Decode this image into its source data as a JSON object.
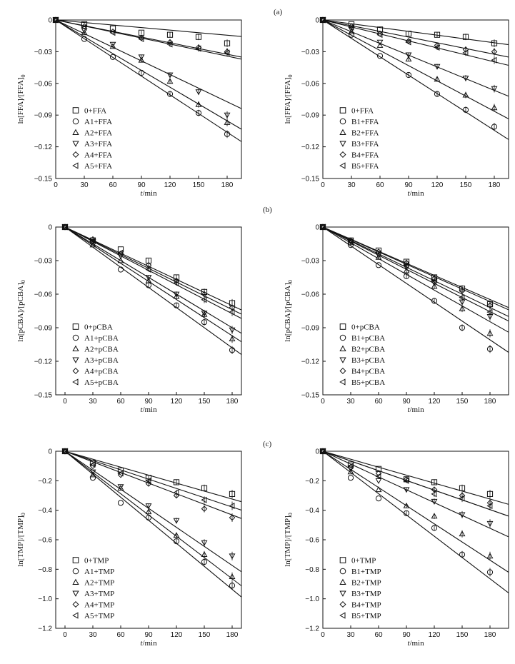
{
  "figure": {
    "panel_labels": [
      "(a)",
      "(b)",
      "(c)"
    ]
  },
  "colors": {
    "ink": "#111111",
    "background": "#ffffff"
  },
  "chart_data": [
    {
      "id": "a-left",
      "type": "scatter",
      "ylabel": "ln[FFA]/[FFA]0",
      "xlabel": "t/min",
      "xlim": [
        0,
        195
      ],
      "ylim": [
        -0.15,
        0
      ],
      "xticks": [
        0,
        30,
        60,
        90,
        120,
        150,
        180
      ],
      "xtick_labels": [
        "0",
        "30",
        "60",
        "90",
        "120",
        "150",
        "180"
      ],
      "yticks": [
        0,
        -0.03,
        -0.06,
        -0.09,
        -0.12,
        -0.15
      ],
      "ytick_labels": [
        "0",
        "−0.03",
        "−0.06",
        "−0.09",
        "−0.12",
        "−0.15"
      ],
      "series": [
        {
          "name": "0+FFA",
          "marker": "square",
          "x": [
            0,
            30,
            60,
            90,
            120,
            150,
            180
          ],
          "y": [
            0,
            -0.004,
            -0.008,
            -0.012,
            -0.014,
            -0.016,
            -0.022
          ],
          "fit_slope": -8e-05
        },
        {
          "name": "A1+FFA",
          "marker": "circle",
          "x": [
            0,
            30,
            60,
            90,
            120,
            150,
            180
          ],
          "y": [
            0,
            -0.018,
            -0.035,
            -0.05,
            -0.07,
            -0.088,
            -0.108
          ],
          "fit_slope": -0.00059
        },
        {
          "name": "A2+FFA",
          "marker": "triangle-up",
          "x": [
            0,
            30,
            60,
            90,
            120,
            150,
            180
          ],
          "y": [
            0,
            -0.012,
            -0.025,
            -0.038,
            -0.058,
            -0.08,
            -0.097
          ],
          "fit_slope": -0.00053
        },
        {
          "name": "A3+FFA",
          "marker": "triangle-down",
          "x": [
            0,
            30,
            60,
            90,
            120,
            150,
            180
          ],
          "y": [
            0,
            -0.01,
            -0.023,
            -0.035,
            -0.052,
            -0.068,
            -0.09
          ],
          "fit_slope": -0.00043
        },
        {
          "name": "A4+FFA",
          "marker": "diamond",
          "x": [
            0,
            30,
            60,
            90,
            120,
            150,
            180
          ],
          "y": [
            0,
            -0.006,
            -0.011,
            -0.017,
            -0.021,
            -0.026,
            -0.03
          ],
          "fit_slope": -0.00018
        },
        {
          "name": "A5+FFA",
          "marker": "triangle-left",
          "x": [
            0,
            30,
            60,
            90,
            120,
            150,
            180
          ],
          "y": [
            0,
            -0.007,
            -0.012,
            -0.018,
            -0.023,
            -0.027,
            -0.031
          ],
          "fit_slope": -0.00019
        }
      ]
    },
    {
      "id": "a-right",
      "type": "scatter",
      "ylabel": "ln[FFA]/[FFA]0",
      "xlabel": "t/min",
      "xlim": [
        0,
        195
      ],
      "ylim": [
        -0.15,
        0
      ],
      "xticks": [
        0,
        30,
        60,
        90,
        120,
        150,
        180
      ],
      "xtick_labels": [
        "0",
        "30",
        "60",
        "90",
        "120",
        "150",
        "180"
      ],
      "yticks": [
        0,
        -0.03,
        -0.06,
        -0.09,
        -0.12,
        -0.15
      ],
      "ytick_labels": [
        "0",
        "−0.03",
        "−0.06",
        "−0.09",
        "−0.12",
        "−0.15"
      ],
      "series": [
        {
          "name": "0+FFA",
          "marker": "square",
          "x": [
            0,
            30,
            60,
            90,
            120,
            150,
            180
          ],
          "y": [
            0,
            -0.004,
            -0.009,
            -0.013,
            -0.014,
            -0.016,
            -0.022
          ],
          "fit_slope": -0.00012
        },
        {
          "name": "B1+FFA",
          "marker": "circle",
          "x": [
            0,
            30,
            60,
            90,
            120,
            150,
            180
          ],
          "y": [
            0,
            -0.014,
            -0.034,
            -0.052,
            -0.07,
            -0.085,
            -0.101
          ],
          "fit_slope": -0.00058
        },
        {
          "name": "B2+FFA",
          "marker": "triangle-up",
          "x": [
            0,
            30,
            60,
            90,
            120,
            150,
            180
          ],
          "y": [
            0,
            -0.011,
            -0.024,
            -0.037,
            -0.056,
            -0.071,
            -0.083
          ],
          "fit_slope": -0.00048
        },
        {
          "name": "B3+FFA",
          "marker": "triangle-down",
          "x": [
            0,
            30,
            60,
            90,
            120,
            150,
            180
          ],
          "y": [
            0,
            -0.009,
            -0.021,
            -0.033,
            -0.044,
            -0.055,
            -0.065
          ],
          "fit_slope": -0.00037
        },
        {
          "name": "B4+FFA",
          "marker": "diamond",
          "x": [
            0,
            30,
            60,
            90,
            120,
            150,
            180
          ],
          "y": [
            0,
            -0.006,
            -0.013,
            -0.02,
            -0.024,
            -0.028,
            -0.03
          ],
          "fit_slope": -0.00018
        },
        {
          "name": "B5+FFA",
          "marker": "triangle-left",
          "x": [
            0,
            30,
            60,
            90,
            120,
            150,
            180
          ],
          "y": [
            0,
            -0.007,
            -0.014,
            -0.021,
            -0.026,
            -0.031,
            -0.038
          ],
          "fit_slope": -0.00022
        }
      ]
    },
    {
      "id": "b-left",
      "type": "scatter",
      "ylabel": "ln[pCBA]/[pCBA]0",
      "xlabel": "t/min",
      "xlim": [
        -10,
        190
      ],
      "ylim": [
        -0.15,
        0
      ],
      "xticks": [
        0,
        30,
        60,
        90,
        120,
        150,
        180
      ],
      "xtick_labels": [
        "0",
        "30",
        "60",
        "90",
        "120",
        "150",
        "180"
      ],
      "yticks": [
        0,
        -0.03,
        -0.06,
        -0.09,
        -0.12,
        -0.15
      ],
      "ytick_labels": [
        "0",
        "−0.03",
        "−0.06",
        "−0.09",
        "−0.12",
        "−0.15"
      ],
      "series": [
        {
          "name": "0+pCBA",
          "marker": "square",
          "x": [
            0,
            30,
            60,
            90,
            120,
            150,
            180
          ],
          "y": [
            0,
            -0.012,
            -0.02,
            -0.03,
            -0.045,
            -0.058,
            -0.068
          ],
          "fit_slope": -0.00039
        },
        {
          "name": "A1+pCBA",
          "marker": "circle",
          "x": [
            0,
            30,
            60,
            90,
            120,
            150,
            180
          ],
          "y": [
            0,
            -0.014,
            -0.038,
            -0.052,
            -0.07,
            -0.085,
            -0.11
          ],
          "fit_slope": -0.0006
        },
        {
          "name": "A2+pCBA",
          "marker": "triangle-up",
          "x": [
            0,
            30,
            60,
            90,
            120,
            150,
            180
          ],
          "y": [
            0,
            -0.016,
            -0.03,
            -0.048,
            -0.062,
            -0.078,
            -0.1
          ],
          "fit_slope": -0.00054
        },
        {
          "name": "A3+pCBA",
          "marker": "triangle-down",
          "x": [
            0,
            30,
            60,
            90,
            120,
            150,
            180
          ],
          "y": [
            0,
            -0.013,
            -0.026,
            -0.045,
            -0.06,
            -0.077,
            -0.092
          ],
          "fit_slope": -0.0005
        },
        {
          "name": "A4+pCBA",
          "marker": "diamond",
          "x": [
            0,
            30,
            60,
            90,
            120,
            150,
            180
          ],
          "y": [
            0,
            -0.011,
            -0.024,
            -0.034,
            -0.048,
            -0.06,
            -0.072
          ],
          "fit_slope": -0.00041
        },
        {
          "name": "A5+pCBA",
          "marker": "triangle-left",
          "x": [
            0,
            30,
            60,
            90,
            120,
            150,
            180
          ],
          "y": [
            0,
            -0.012,
            -0.023,
            -0.038,
            -0.05,
            -0.065,
            -0.076
          ],
          "fit_slope": -0.00043
        }
      ]
    },
    {
      "id": "b-right",
      "type": "scatter",
      "ylabel": "ln[pCBA]/[pCBA]0",
      "xlabel": "t/min",
      "xlim": [
        0,
        200
      ],
      "ylim": [
        -0.15,
        0
      ],
      "xticks": [
        0,
        30,
        60,
        90,
        120,
        150,
        180
      ],
      "xtick_labels": [
        "0",
        "30",
        "60",
        "90",
        "120",
        "150",
        "180"
      ],
      "yticks": [
        0,
        -0.03,
        -0.06,
        -0.09,
        -0.12,
        -0.15
      ],
      "ytick_labels": [
        "0",
        "−0.03",
        "−0.06",
        "−0.09",
        "−0.12",
        "−0.15"
      ],
      "series": [
        {
          "name": "0+pCBA",
          "marker": "square",
          "x": [
            0,
            30,
            60,
            90,
            120,
            150,
            180
          ],
          "y": [
            0,
            -0.012,
            -0.021,
            -0.031,
            -0.045,
            -0.055,
            -0.069
          ],
          "fit_slope": -0.00036
        },
        {
          "name": "B1+pCBA",
          "marker": "circle",
          "x": [
            0,
            30,
            60,
            90,
            120,
            150,
            180
          ],
          "y": [
            0,
            -0.016,
            -0.034,
            -0.044,
            -0.066,
            -0.09,
            -0.109
          ],
          "fit_slope": -0.00056
        },
        {
          "name": "B2+pCBA",
          "marker": "triangle-up",
          "x": [
            0,
            30,
            60,
            90,
            120,
            150,
            180
          ],
          "y": [
            0,
            -0.014,
            -0.027,
            -0.039,
            -0.053,
            -0.073,
            -0.095
          ],
          "fit_slope": -0.00047
        },
        {
          "name": "B3+pCBA",
          "marker": "triangle-down",
          "x": [
            0,
            30,
            60,
            90,
            120,
            150,
            180
          ],
          "y": [
            0,
            -0.013,
            -0.025,
            -0.036,
            -0.05,
            -0.067,
            -0.08
          ],
          "fit_slope": -0.00042
        },
        {
          "name": "B4+pCBA",
          "marker": "diamond",
          "x": [
            0,
            30,
            60,
            90,
            120,
            150,
            180
          ],
          "y": [
            0,
            -0.012,
            -0.022,
            -0.032,
            -0.046,
            -0.057,
            -0.07
          ],
          "fit_slope": -0.00037
        },
        {
          "name": "B5+pCBA",
          "marker": "triangle-left",
          "x": [
            0,
            30,
            60,
            90,
            120,
            150,
            180
          ],
          "y": [
            0,
            -0.013,
            -0.024,
            -0.034,
            -0.048,
            -0.063,
            -0.076
          ],
          "fit_slope": -0.0004
        }
      ]
    },
    {
      "id": "c-left",
      "type": "scatter",
      "ylabel": "ln[TMP]/[TMP]0",
      "xlabel": "t/min",
      "xlim": [
        -10,
        190
      ],
      "ylim": [
        -1.2,
        0
      ],
      "xticks": [
        0,
        30,
        60,
        90,
        120,
        150,
        180
      ],
      "xtick_labels": [
        "0",
        "30",
        "60",
        "90",
        "120",
        "150",
        "180"
      ],
      "yticks": [
        0,
        -0.2,
        -0.4,
        -0.6,
        -0.8,
        -1.0,
        -1.2
      ],
      "ytick_labels": [
        "0",
        "−0.2",
        "−0.4",
        "−0.6",
        "−0.8",
        "−1.0",
        "−1.2"
      ],
      "series": [
        {
          "name": "0+TMP",
          "marker": "square",
          "x": [
            0,
            30,
            60,
            90,
            120,
            150,
            180
          ],
          "y": [
            0,
            -0.08,
            -0.13,
            -0.18,
            -0.21,
            -0.25,
            -0.29
          ],
          "fit_slope": -0.0018
        },
        {
          "name": "A1+TMP",
          "marker": "circle",
          "x": [
            0,
            30,
            60,
            90,
            120,
            150,
            180
          ],
          "y": [
            0,
            -0.18,
            -0.35,
            -0.45,
            -0.61,
            -0.75,
            -0.91
          ],
          "fit_slope": -0.0052
        },
        {
          "name": "A2+TMP",
          "marker": "triangle-up",
          "x": [
            0,
            30,
            60,
            90,
            120,
            150,
            180
          ],
          "y": [
            0,
            -0.16,
            -0.25,
            -0.41,
            -0.57,
            -0.7,
            -0.85
          ],
          "fit_slope": -0.0048
        },
        {
          "name": "A3+TMP",
          "marker": "triangle-down",
          "x": [
            0,
            30,
            60,
            90,
            120,
            150,
            180
          ],
          "y": [
            0,
            -0.14,
            -0.24,
            -0.37,
            -0.47,
            -0.62,
            -0.71
          ],
          "fit_slope": -0.0043
        },
        {
          "name": "A4+TMP",
          "marker": "diamond",
          "x": [
            0,
            30,
            60,
            90,
            120,
            150,
            180
          ],
          "y": [
            0,
            -0.1,
            -0.16,
            -0.22,
            -0.3,
            -0.39,
            -0.45
          ],
          "fit_slope": -0.0024
        },
        {
          "name": "A5+TMP",
          "marker": "triangle-left",
          "x": [
            0,
            30,
            60,
            90,
            120,
            150,
            180
          ],
          "y": [
            0,
            -0.09,
            -0.15,
            -0.2,
            -0.28,
            -0.33,
            -0.37
          ],
          "fit_slope": -0.0021
        }
      ]
    },
    {
      "id": "c-right",
      "type": "scatter",
      "ylabel": "ln[TMP]/[TMP]0",
      "xlabel": "t/min",
      "xlim": [
        0,
        200
      ],
      "ylim": [
        -1.2,
        0
      ],
      "xticks": [
        0,
        30,
        60,
        90,
        120,
        150,
        180
      ],
      "xtick_labels": [
        "0",
        "30",
        "60",
        "90",
        "120",
        "150",
        "180"
      ],
      "yticks": [
        0,
        -0.2,
        -0.4,
        -0.6,
        -0.8,
        -1.0,
        -1.2
      ],
      "ytick_labels": [
        "0",
        "−0.2",
        "−0.4",
        "−0.6",
        "−0.8",
        "−1.0",
        "−1.2"
      ],
      "series": [
        {
          "name": "0+TMP",
          "marker": "square",
          "x": [
            0,
            30,
            60,
            90,
            120,
            150,
            180
          ],
          "y": [
            0,
            -0.09,
            -0.12,
            -0.19,
            -0.21,
            -0.25,
            -0.29
          ],
          "fit_slope": -0.0018
        },
        {
          "name": "B1+TMP",
          "marker": "circle",
          "x": [
            0,
            30,
            60,
            90,
            120,
            150,
            180
          ],
          "y": [
            0,
            -0.18,
            -0.32,
            -0.42,
            -0.52,
            -0.7,
            -0.82
          ],
          "fit_slope": -0.0048
        },
        {
          "name": "B2+TMP",
          "marker": "triangle-up",
          "x": [
            0,
            30,
            60,
            90,
            120,
            150,
            180
          ],
          "y": [
            0,
            -0.14,
            -0.26,
            -0.37,
            -0.44,
            -0.56,
            -0.71
          ],
          "fit_slope": -0.0041
        },
        {
          "name": "B3+TMP",
          "marker": "triangle-down",
          "x": [
            0,
            30,
            60,
            90,
            120,
            150,
            180
          ],
          "y": [
            0,
            -0.12,
            -0.2,
            -0.26,
            -0.34,
            -0.43,
            -0.49
          ],
          "fit_slope": -0.0029
        },
        {
          "name": "B4+TMP",
          "marker": "diamond",
          "x": [
            0,
            30,
            60,
            90,
            120,
            150,
            180
          ],
          "y": [
            0,
            -0.11,
            -0.15,
            -0.19,
            -0.26,
            -0.3,
            -0.35
          ],
          "fit_slope": -0.0022
        },
        {
          "name": "B5+TMP",
          "marker": "triangle-left",
          "x": [
            0,
            30,
            60,
            90,
            120,
            150,
            180
          ],
          "y": [
            0,
            -0.1,
            -0.17,
            -0.2,
            -0.29,
            -0.32,
            -0.37
          ],
          "fit_slope": -0.0022
        }
      ]
    }
  ]
}
